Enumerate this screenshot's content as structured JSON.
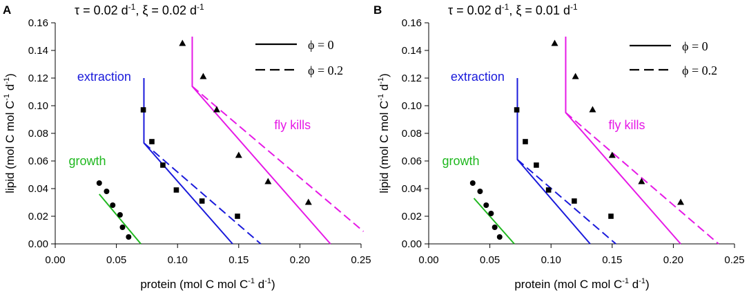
{
  "chart_data": [
    {
      "type": "line",
      "panel": "A",
      "title": "τ = 0.02 d-1, ξ = 0.02 d-1",
      "title_parts": {
        "tau": "τ = 0.02 d",
        "tau_exp": "-1",
        "xi": ", ξ = 0.02 d",
        "xi_exp": "-1"
      },
      "xlabel": "protein (mol C mol C-1 d-1)",
      "xlabel_parts": {
        "a": "protein (mol C mol C",
        "a_exp": "-1",
        "b": " d",
        "b_exp": "-1",
        "c": ")"
      },
      "ylabel": "lipid (mol C mol C-1 d-1)",
      "ylabel_parts": {
        "a": "lipid (mol C mol C",
        "a_exp": "-1",
        "b": " d",
        "b_exp": "-1",
        "c": ")"
      },
      "xlim": [
        0,
        0.25
      ],
      "ylim": [
        0,
        0.16
      ],
      "xticks": [
        "0.00",
        "0.05",
        "0.10",
        "0.15",
        "0.20",
        "0.25"
      ],
      "yticks": [
        "0.00",
        "0.02",
        "0.04",
        "0.06",
        "0.08",
        "0.10",
        "0.12",
        "0.14",
        "0.16"
      ],
      "legend": [
        {
          "label": "ϕ = 0",
          "style": "solid"
        },
        {
          "label": "ϕ = 0.2",
          "style": "dashed"
        }
      ],
      "annotations": [
        {
          "text": "extraction",
          "color": "#1a1adb",
          "x": 0.018,
          "y": 0.118
        },
        {
          "text": "fly kills",
          "color": "#e619e6",
          "x": 0.179,
          "y": 0.083
        },
        {
          "text": "growth",
          "color": "#1fb81f",
          "x": 0.011,
          "y": 0.057
        }
      ],
      "series": [
        {
          "name": "growth ϕ=0",
          "color": "#1fb81f",
          "style": "solid",
          "x": [
            0.036,
            0.07
          ],
          "y": [
            0.036,
            0.0
          ]
        },
        {
          "name": "extraction ϕ=0",
          "color": "#1a1adb",
          "style": "solid",
          "x": [
            0.0725,
            0.0725,
            0.145
          ],
          "y": [
            0.12,
            0.073,
            0.0
          ]
        },
        {
          "name": "extraction ϕ=0.2",
          "color": "#1a1adb",
          "style": "dashed",
          "x": [
            0.0725,
            0.168
          ],
          "y": [
            0.073,
            0.0
          ]
        },
        {
          "name": "fly kills ϕ=0",
          "color": "#e619e6",
          "style": "solid",
          "x": [
            0.112,
            0.112,
            0.225
          ],
          "y": [
            0.15,
            0.114,
            0.0
          ]
        },
        {
          "name": "fly kills ϕ=0.2",
          "color": "#e619e6",
          "style": "dashed",
          "x": [
            0.112,
            0.252
          ],
          "y": [
            0.114,
            0.009
          ]
        }
      ],
      "points": [
        {
          "name": "growth data",
          "marker": "circle",
          "x": [
            0.036,
            0.042,
            0.047,
            0.053,
            0.055,
            0.06
          ],
          "y": [
            0.044,
            0.038,
            0.028,
            0.021,
            0.012,
            0.005
          ]
        },
        {
          "name": "extraction data",
          "marker": "square",
          "x": [
            0.072,
            0.079,
            0.088,
            0.099,
            0.12,
            0.149
          ],
          "y": [
            0.097,
            0.074,
            0.057,
            0.039,
            0.031,
            0.02
          ]
        },
        {
          "name": "fly kills data",
          "marker": "triangle",
          "x": [
            0.104,
            0.121,
            0.132,
            0.15,
            0.174,
            0.207
          ],
          "y": [
            0.145,
            0.121,
            0.097,
            0.064,
            0.045,
            0.03
          ]
        }
      ]
    },
    {
      "type": "line",
      "panel": "B",
      "title": "τ = 0.02 d-1, ξ = 0.01 d-1",
      "title_parts": {
        "tau": "τ = 0.02 d",
        "tau_exp": "-1",
        "xi": ", ξ = 0.01 d",
        "xi_exp": "-1"
      },
      "xlabel": "protein (mol C mol C-1 d-1)",
      "xlabel_parts": {
        "a": "protein (mol C mol C",
        "a_exp": "-1",
        "b": " d",
        "b_exp": "-1",
        "c": ")"
      },
      "ylabel": "lipid (mol C mol C-1 d-1)",
      "ylabel_parts": {
        "a": "lipid (mol C mol C",
        "a_exp": "-1",
        "b": " d",
        "b_exp": "-1",
        "c": ")"
      },
      "xlim": [
        0,
        0.25
      ],
      "ylim": [
        0,
        0.16
      ],
      "xticks": [
        "0.00",
        "0.05",
        "0.10",
        "0.15",
        "0.20",
        "0.25"
      ],
      "yticks": [
        "0.00",
        "0.02",
        "0.04",
        "0.06",
        "0.08",
        "0.10",
        "0.12",
        "0.14",
        "0.16"
      ],
      "legend": [
        {
          "label": "ϕ = 0",
          "style": "solid"
        },
        {
          "label": "ϕ = 0.2",
          "style": "dashed"
        }
      ],
      "annotations": [
        {
          "text": "extraction",
          "color": "#1a1adb",
          "x": 0.018,
          "y": 0.118
        },
        {
          "text": "fly kills",
          "color": "#e619e6",
          "x": 0.147,
          "y": 0.083
        },
        {
          "text": "growth",
          "color": "#1fb81f",
          "x": 0.011,
          "y": 0.057
        }
      ],
      "series": [
        {
          "name": "growth ϕ=0",
          "color": "#1fb81f",
          "style": "solid",
          "x": [
            0.037,
            0.07
          ],
          "y": [
            0.033,
            0.0
          ]
        },
        {
          "name": "extraction ϕ=0",
          "color": "#1a1adb",
          "style": "solid",
          "x": [
            0.0725,
            0.0725,
            0.132
          ],
          "y": [
            0.12,
            0.061,
            0.0
          ]
        },
        {
          "name": "extraction ϕ=0.2",
          "color": "#1a1adb",
          "style": "dashed",
          "x": [
            0.0725,
            0.153
          ],
          "y": [
            0.061,
            0.0
          ]
        },
        {
          "name": "fly kills ϕ=0",
          "color": "#e619e6",
          "style": "solid",
          "x": [
            0.112,
            0.112,
            0.206
          ],
          "y": [
            0.15,
            0.095,
            0.0
          ]
        },
        {
          "name": "fly kills ϕ=0.2",
          "color": "#e619e6",
          "style": "dashed",
          "x": [
            0.112,
            0.237
          ],
          "y": [
            0.095,
            0.0
          ]
        }
      ],
      "points": [
        {
          "name": "growth data",
          "marker": "circle",
          "x": [
            0.036,
            0.042,
            0.047,
            0.051,
            0.054,
            0.058
          ],
          "y": [
            0.044,
            0.038,
            0.028,
            0.022,
            0.012,
            0.005
          ]
        },
        {
          "name": "extraction data",
          "marker": "square",
          "x": [
            0.072,
            0.079,
            0.088,
            0.098,
            0.119,
            0.149
          ],
          "y": [
            0.097,
            0.074,
            0.057,
            0.039,
            0.031,
            0.02
          ]
        },
        {
          "name": "fly kills data",
          "marker": "triangle",
          "x": [
            0.103,
            0.12,
            0.134,
            0.15,
            0.174,
            0.206
          ],
          "y": [
            0.145,
            0.121,
            0.097,
            0.064,
            0.045,
            0.03
          ]
        }
      ]
    }
  ]
}
